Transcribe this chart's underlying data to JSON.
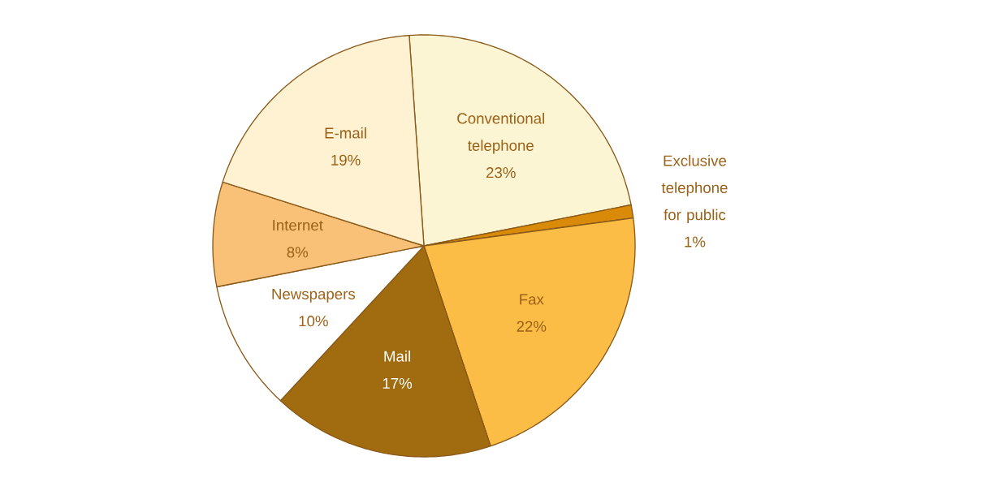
{
  "chart_data": {
    "type": "pie",
    "categories": [
      "Conventional telephone",
      "Exclusive telephone for public",
      "Fax",
      "Mail",
      "Newspapers",
      "Internet",
      "E-mail"
    ],
    "values": [
      23,
      1,
      22,
      17,
      10,
      8,
      19
    ],
    "value_labels": [
      "23%",
      "1%",
      "22%",
      "17%",
      "10%",
      "8%",
      "19%"
    ],
    "colors": [
      "#fcf5d4",
      "#d98a08",
      "#fbbd46",
      "#a16b10",
      "#ffffff",
      "#f9c078",
      "#fef2d2"
    ]
  }
}
